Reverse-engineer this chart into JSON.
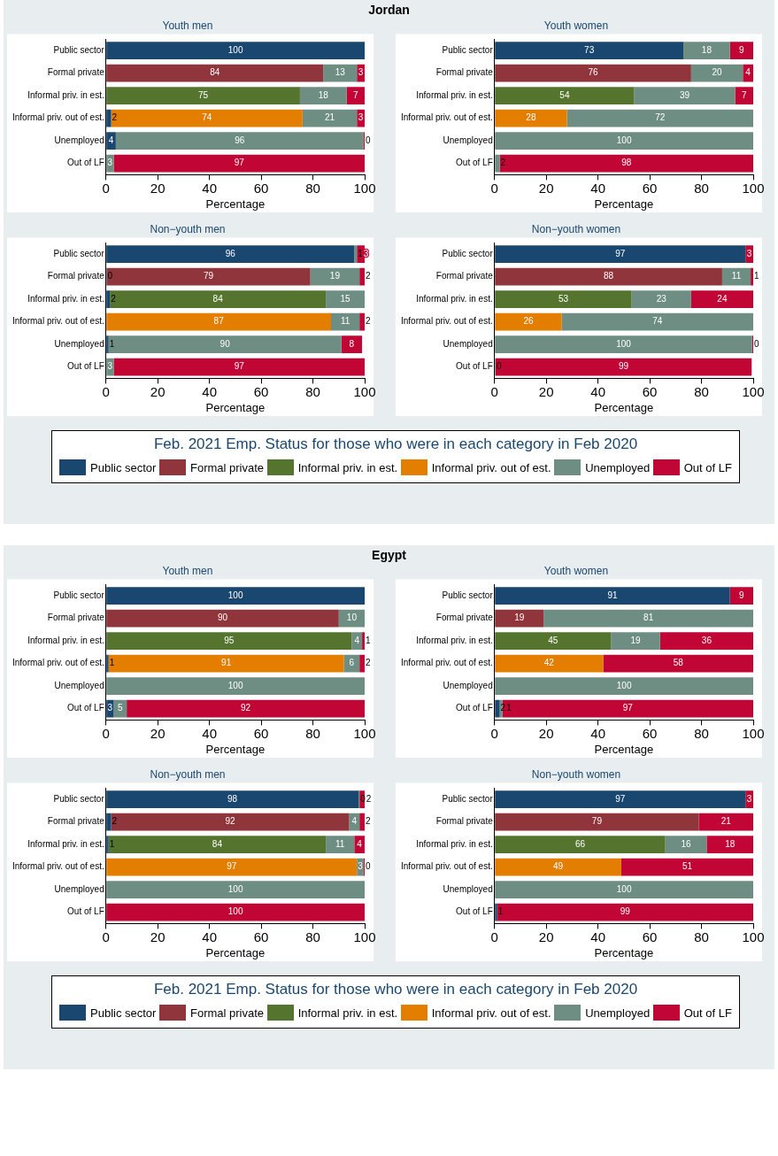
{
  "chart_data": [
    {
      "type": "bar",
      "orientation": "horizontal",
      "stacked": true,
      "grid": false,
      "legend": false,
      "annotations": [
        "Jordan"
      ],
      "title": "Youth men",
      "xlabel": "Percentage",
      "xlim": [
        0,
        100
      ],
      "xticks": [
        0,
        20,
        40,
        60,
        80,
        100
      ],
      "categories": [
        "Public sector",
        "Formal private",
        "Informal priv. in est.",
        "Informal priv. out of est.",
        "Unemployed",
        "Out of LF"
      ],
      "series": [
        {
          "color": "#1a476f",
          "values": [
            100,
            null,
            null,
            2,
            3.8,
            null
          ],
          "value_labels": [
            "100",
            null,
            null,
            "2",
            "4",
            null
          ]
        },
        {
          "color": "#90353b",
          "values": [
            null,
            84,
            null,
            null,
            null,
            null
          ],
          "value_labels": [
            null,
            "84",
            null,
            null,
            null,
            null
          ]
        },
        {
          "color": "#55752f",
          "values": [
            null,
            null,
            75,
            null,
            null,
            null
          ],
          "value_labels": [
            null,
            null,
            "75",
            null,
            null,
            null
          ]
        },
        {
          "color": "#e37e00",
          "values": [
            null,
            null,
            null,
            74,
            null,
            null
          ],
          "value_labels": [
            null,
            null,
            null,
            "74",
            null,
            null
          ]
        },
        {
          "color": "#6e8e84",
          "values": [
            null,
            13,
            18,
            21,
            95.8,
            3
          ],
          "value_labels": [
            null,
            "13",
            "18",
            "21",
            "96",
            "3"
          ]
        },
        {
          "color": "#c10534",
          "values": [
            null,
            3,
            7,
            3,
            0.4,
            97
          ],
          "value_labels": [
            null,
            "3",
            "7",
            "3",
            "0",
            "97"
          ]
        }
      ]
    },
    {
      "type": "bar",
      "orientation": "horizontal",
      "stacked": true,
      "grid": false,
      "legend": false,
      "title": "Youth women",
      "xlabel": "Percentage",
      "xlim": [
        0,
        100
      ],
      "xticks": [
        0,
        20,
        40,
        60,
        80,
        100
      ],
      "categories": [
        "Public sector",
        "Formal private",
        "Informal priv. in est.",
        "Informal priv. out of est.",
        "Unemployed",
        "Out of LF"
      ],
      "series": [
        {
          "color": "#1a476f",
          "values": [
            73,
            null,
            null,
            null,
            null,
            null
          ],
          "value_labels": [
            "73",
            null,
            null,
            null,
            null,
            null
          ]
        },
        {
          "color": "#90353b",
          "values": [
            null,
            76,
            null,
            null,
            null,
            null
          ],
          "value_labels": [
            null,
            "76",
            null,
            null,
            null,
            null
          ]
        },
        {
          "color": "#55752f",
          "values": [
            null,
            null,
            54,
            null,
            null,
            null
          ],
          "value_labels": [
            null,
            null,
            "54",
            null,
            null,
            null
          ]
        },
        {
          "color": "#e37e00",
          "values": [
            null,
            null,
            null,
            28,
            null,
            null
          ],
          "value_labels": [
            null,
            null,
            null,
            "28",
            null,
            null
          ]
        },
        {
          "color": "#6e8e84",
          "values": [
            18,
            20,
            39,
            72,
            100,
            2
          ],
          "value_labels": [
            "18",
            "20",
            "39",
            "72",
            "100",
            "2"
          ]
        },
        {
          "color": "#c10534",
          "values": [
            9,
            4,
            7,
            null,
            null,
            98
          ],
          "value_labels": [
            "9",
            "4",
            "7",
            null,
            null,
            "98"
          ]
        }
      ]
    },
    {
      "type": "bar",
      "orientation": "horizontal",
      "stacked": true,
      "grid": false,
      "legend": false,
      "title": "Non−youth men",
      "xlabel": "Percentage",
      "xlim": [
        0,
        100
      ],
      "xticks": [
        0,
        20,
        40,
        60,
        80,
        100
      ],
      "categories": [
        "Public sector",
        "Formal private",
        "Informal priv. in est.",
        "Informal priv. out of est.",
        "Unemployed",
        "Out of LF"
      ],
      "series": [
        {
          "color": "#1a476f",
          "values": [
            96,
            0.3,
            1.5,
            null,
            1,
            null
          ],
          "value_labels": [
            "96",
            "0",
            "2",
            null,
            "1",
            null
          ]
        },
        {
          "color": "#90353b",
          "values": [
            null,
            78.7,
            null,
            null,
            null,
            null
          ],
          "value_labels": [
            null,
            "79",
            null,
            null,
            null,
            null
          ]
        },
        {
          "color": "#55752f",
          "values": [
            null,
            null,
            83.5,
            null,
            null,
            null
          ],
          "value_labels": [
            null,
            null,
            "84",
            null,
            null,
            null
          ]
        },
        {
          "color": "#e37e00",
          "values": [
            null,
            null,
            null,
            87,
            null,
            null
          ],
          "value_labels": [
            null,
            null,
            null,
            "87",
            null,
            null
          ]
        },
        {
          "color": "#6e8e84",
          "values": [
            1,
            19,
            15,
            11,
            90,
            3
          ],
          "value_labels": [
            "1",
            "19",
            "15",
            "11",
            "90",
            "3"
          ]
        },
        {
          "color": "#c10534",
          "values": [
            3,
            2,
            null,
            2,
            8,
            97
          ],
          "value_labels": [
            "3",
            "2",
            null,
            "2",
            "8",
            "97"
          ]
        }
      ]
    },
    {
      "type": "bar",
      "orientation": "horizontal",
      "stacked": true,
      "grid": false,
      "legend": "bottom",
      "legend_title": "Feb. 2021 Emp. Status for those who were in each category in Feb 2020",
      "title": "Non−youth women",
      "xlabel": "Percentage",
      "xlim": [
        0,
        100
      ],
      "xticks": [
        0,
        20,
        40,
        60,
        80,
        100
      ],
      "categories": [
        "Public sector",
        "Formal private",
        "Informal priv. in est.",
        "Informal priv. out of est.",
        "Unemployed",
        "Out of LF"
      ],
      "series": [
        {
          "name": "Public sector",
          "color": "#1a476f",
          "values": [
            97,
            null,
            null,
            null,
            null,
            null
          ],
          "value_labels": [
            "97",
            null,
            null,
            null,
            null,
            null
          ]
        },
        {
          "name": "Formal private",
          "color": "#90353b",
          "values": [
            null,
            88,
            null,
            null,
            null,
            null
          ],
          "value_labels": [
            null,
            "88",
            null,
            null,
            null,
            null
          ]
        },
        {
          "name": "Informal priv. in est.",
          "color": "#55752f",
          "values": [
            null,
            null,
            53,
            null,
            null,
            null
          ],
          "value_labels": [
            null,
            null,
            "53",
            null,
            null,
            null
          ]
        },
        {
          "name": "Informal priv. out of est.",
          "color": "#e37e00",
          "values": [
            null,
            null,
            null,
            26,
            null,
            null
          ],
          "value_labels": [
            null,
            null,
            null,
            "26",
            null,
            null
          ]
        },
        {
          "name": "Unemployed",
          "color": "#6e8e84",
          "values": [
            null,
            11,
            23,
            74,
            99.6,
            0.4
          ],
          "value_labels": [
            null,
            "11",
            "23",
            "74",
            "100",
            "0"
          ]
        },
        {
          "name": "Out of LF",
          "color": "#c10534",
          "values": [
            3,
            1,
            24,
            null,
            0.4,
            99
          ],
          "value_labels": [
            "3",
            "1",
            "24",
            null,
            "0",
            "99"
          ]
        }
      ]
    },
    {
      "type": "bar",
      "orientation": "horizontal",
      "stacked": true,
      "grid": false,
      "legend": false,
      "annotations": [
        "Egypt"
      ],
      "title": "Youth men",
      "xlabel": "Percentage",
      "xlim": [
        0,
        100
      ],
      "xticks": [
        0,
        20,
        40,
        60,
        80,
        100
      ],
      "categories": [
        "Public sector",
        "Formal private",
        "Informal priv. in est.",
        "Informal priv. out of est.",
        "Unemployed",
        "Out of LF"
      ],
      "series": [
        {
          "color": "#1a476f",
          "values": [
            100,
            null,
            null,
            1,
            null,
            3
          ],
          "value_labels": [
            "100",
            null,
            null,
            "1",
            null,
            "3"
          ]
        },
        {
          "color": "#90353b",
          "values": [
            null,
            90,
            null,
            null,
            null,
            null
          ],
          "value_labels": [
            null,
            "90",
            null,
            null,
            null,
            null
          ]
        },
        {
          "color": "#55752f",
          "values": [
            null,
            null,
            95,
            null,
            null,
            null
          ],
          "value_labels": [
            null,
            null,
            "95",
            null,
            null,
            null
          ]
        },
        {
          "color": "#e37e00",
          "values": [
            null,
            null,
            null,
            91,
            null,
            null
          ],
          "value_labels": [
            null,
            null,
            null,
            "91",
            null,
            null
          ]
        },
        {
          "color": "#6e8e84",
          "values": [
            null,
            10,
            4,
            6,
            100,
            5
          ],
          "value_labels": [
            null,
            "10",
            "4",
            "6",
            "100",
            "5"
          ]
        },
        {
          "color": "#c10534",
          "values": [
            null,
            null,
            1,
            2,
            null,
            92
          ],
          "value_labels": [
            null,
            null,
            "1",
            "2",
            null,
            "92"
          ]
        }
      ]
    },
    {
      "type": "bar",
      "orientation": "horizontal",
      "stacked": true,
      "grid": false,
      "legend": false,
      "title": "Youth women",
      "xlabel": "Percentage",
      "xlim": [
        0,
        100
      ],
      "xticks": [
        0,
        20,
        40,
        60,
        80,
        100
      ],
      "categories": [
        "Public sector",
        "Formal private",
        "Informal priv. in est.",
        "Informal priv. out of est.",
        "Unemployed",
        "Out of LF"
      ],
      "series": [
        {
          "color": "#1a476f",
          "values": [
            91,
            null,
            null,
            null,
            null,
            2
          ],
          "value_labels": [
            "91",
            null,
            null,
            null,
            null,
            "2"
          ]
        },
        {
          "color": "#90353b",
          "values": [
            null,
            19,
            null,
            null,
            null,
            null
          ],
          "value_labels": [
            null,
            "19",
            null,
            null,
            null,
            null
          ]
        },
        {
          "color": "#55752f",
          "values": [
            null,
            null,
            45,
            null,
            null,
            null
          ],
          "value_labels": [
            null,
            null,
            "45",
            null,
            null,
            null
          ]
        },
        {
          "color": "#e37e00",
          "values": [
            null,
            null,
            null,
            42,
            null,
            null
          ],
          "value_labels": [
            null,
            null,
            null,
            "42",
            null,
            null
          ]
        },
        {
          "color": "#6e8e84",
          "values": [
            null,
            81,
            19,
            null,
            100,
            1
          ],
          "value_labels": [
            null,
            "81",
            "19",
            null,
            "100",
            "1"
          ]
        },
        {
          "color": "#c10534",
          "values": [
            9,
            null,
            36,
            58,
            null,
            97
          ],
          "value_labels": [
            "9",
            null,
            "36",
            "58",
            null,
            "97"
          ]
        }
      ]
    },
    {
      "type": "bar",
      "orientation": "horizontal",
      "stacked": true,
      "grid": false,
      "legend": false,
      "title": "Non−youth men",
      "xlabel": "Percentage",
      "xlim": [
        0,
        100
      ],
      "xticks": [
        0,
        20,
        40,
        60,
        80,
        100
      ],
      "categories": [
        "Public sector",
        "Formal private",
        "Informal priv. in est.",
        "Informal priv. out of est.",
        "Unemployed",
        "Out of LF"
      ],
      "series": [
        {
          "color": "#1a476f",
          "values": [
            97.6,
            2,
            1,
            null,
            null,
            null
          ],
          "value_labels": [
            "98",
            "2",
            "1",
            null,
            null,
            null
          ]
        },
        {
          "color": "#90353b",
          "values": [
            null,
            92,
            null,
            null,
            null,
            null
          ],
          "value_labels": [
            null,
            "92",
            null,
            null,
            null,
            null
          ]
        },
        {
          "color": "#55752f",
          "values": [
            null,
            null,
            84,
            null,
            null,
            null
          ],
          "value_labels": [
            null,
            null,
            "84",
            null,
            null,
            null
          ]
        },
        {
          "color": "#e37e00",
          "values": [
            null,
            null,
            null,
            97,
            null,
            null
          ],
          "value_labels": [
            null,
            null,
            null,
            "97",
            null,
            null
          ]
        },
        {
          "color": "#6e8e84",
          "values": [
            0.4,
            4,
            11,
            2.6,
            100,
            null
          ],
          "value_labels": [
            "0",
            "4",
            "11",
            "3",
            "100",
            null
          ]
        },
        {
          "color": "#c10534",
          "values": [
            2,
            2,
            4,
            0.4,
            null,
            100
          ],
          "value_labels": [
            "2",
            "2",
            "4",
            "0",
            null,
            "100"
          ]
        }
      ]
    },
    {
      "type": "bar",
      "orientation": "horizontal",
      "stacked": true,
      "grid": false,
      "legend": "bottom",
      "legend_title": "Feb. 2021 Emp. Status for those who were in each category in Feb 2020",
      "title": "Non−youth women",
      "xlabel": "Percentage",
      "xlim": [
        0,
        100
      ],
      "xticks": [
        0,
        20,
        40,
        60,
        80,
        100
      ],
      "categories": [
        "Public sector",
        "Formal private",
        "Informal priv. in est.",
        "Informal priv. out of est.",
        "Unemployed",
        "Out of LF"
      ],
      "series": [
        {
          "name": "Public sector",
          "color": "#1a476f",
          "values": [
            97,
            null,
            null,
            null,
            null,
            1
          ],
          "value_labels": [
            "97",
            null,
            null,
            null,
            null,
            "1"
          ]
        },
        {
          "name": "Formal private",
          "color": "#90353b",
          "values": [
            null,
            79,
            null,
            null,
            null,
            null
          ],
          "value_labels": [
            null,
            "79",
            null,
            null,
            null,
            null
          ]
        },
        {
          "name": "Informal priv. in est.",
          "color": "#55752f",
          "values": [
            null,
            null,
            66,
            null,
            null,
            null
          ],
          "value_labels": [
            null,
            null,
            "66",
            null,
            null,
            null
          ]
        },
        {
          "name": "Informal priv. out of est.",
          "color": "#e37e00",
          "values": [
            null,
            null,
            null,
            49,
            null,
            null
          ],
          "value_labels": [
            null,
            null,
            null,
            "49",
            null,
            null
          ]
        },
        {
          "name": "Unemployed",
          "color": "#6e8e84",
          "values": [
            null,
            null,
            16,
            null,
            100,
            null
          ],
          "value_labels": [
            null,
            null,
            "16",
            null,
            "100",
            null
          ]
        },
        {
          "name": "Out of LF",
          "color": "#c10534",
          "values": [
            3,
            21,
            18,
            51,
            null,
            99
          ],
          "value_labels": [
            "3",
            "21",
            "18",
            "51",
            null,
            "99"
          ]
        }
      ]
    }
  ]
}
